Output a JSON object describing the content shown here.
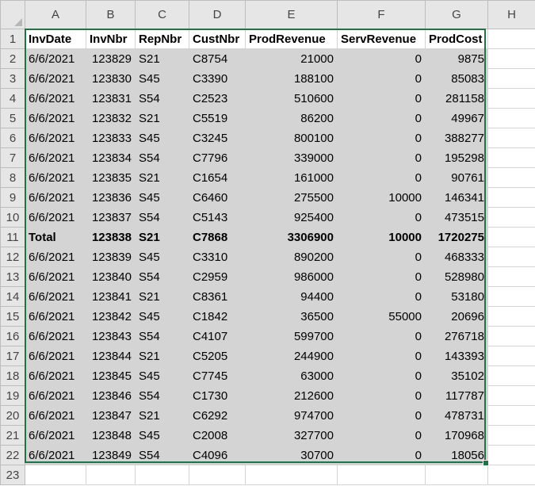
{
  "columns": [
    "A",
    "B",
    "C",
    "D",
    "E",
    "F",
    "G",
    "H"
  ],
  "rows": [
    [
      "InvDate",
      "InvNbr",
      "RepNbr",
      "CustNbr",
      "ProdRevenue",
      "ServRevenue",
      "ProdCost"
    ],
    [
      "6/6/2021",
      "123829",
      "S21",
      "C8754",
      "21000",
      "0",
      "9875"
    ],
    [
      "6/6/2021",
      "123830",
      "S45",
      "C3390",
      "188100",
      "0",
      "85083"
    ],
    [
      "6/6/2021",
      "123831",
      "S54",
      "C2523",
      "510600",
      "0",
      "281158"
    ],
    [
      "6/6/2021",
      "123832",
      "S21",
      "C5519",
      "86200",
      "0",
      "49967"
    ],
    [
      "6/6/2021",
      "123833",
      "S45",
      "C3245",
      "800100",
      "0",
      "388277"
    ],
    [
      "6/6/2021",
      "123834",
      "S54",
      "C7796",
      "339000",
      "0",
      "195298"
    ],
    [
      "6/6/2021",
      "123835",
      "S21",
      "C1654",
      "161000",
      "0",
      "90761"
    ],
    [
      "6/6/2021",
      "123836",
      "S45",
      "C6460",
      "275500",
      "10000",
      "146341"
    ],
    [
      "6/6/2021",
      "123837",
      "S54",
      "C5143",
      "925400",
      "0",
      "473515"
    ],
    [
      "Total",
      "123838",
      "S21",
      "C7868",
      "3306900",
      "10000",
      "1720275"
    ],
    [
      "6/6/2021",
      "123839",
      "S45",
      "C3310",
      "890200",
      "0",
      "468333"
    ],
    [
      "6/6/2021",
      "123840",
      "S54",
      "C2959",
      "986000",
      "0",
      "528980"
    ],
    [
      "6/6/2021",
      "123841",
      "S21",
      "C8361",
      "94400",
      "0",
      "53180"
    ],
    [
      "6/6/2021",
      "123842",
      "S45",
      "C1842",
      "36500",
      "55000",
      "20696"
    ],
    [
      "6/6/2021",
      "123843",
      "S54",
      "C4107",
      "599700",
      "0",
      "276718"
    ],
    [
      "6/6/2021",
      "123844",
      "S21",
      "C5205",
      "244900",
      "0",
      "143393"
    ],
    [
      "6/6/2021",
      "123845",
      "S45",
      "C7745",
      "63000",
      "0",
      "35102"
    ],
    [
      "6/6/2021",
      "123846",
      "S54",
      "C1730",
      "212600",
      "0",
      "117787"
    ],
    [
      "6/6/2021",
      "123847",
      "S21",
      "C6292",
      "974700",
      "0",
      "478731"
    ],
    [
      "6/6/2021",
      "123848",
      "S45",
      "C2008",
      "327700",
      "0",
      "170968"
    ],
    [
      "6/6/2021",
      "123849",
      "S54",
      "C4096",
      "30700",
      "0",
      "18056"
    ]
  ],
  "row_numbers": [
    "1",
    "2",
    "3",
    "4",
    "5",
    "6",
    "7",
    "8",
    "9",
    "10",
    "11",
    "12",
    "13",
    "14",
    "15",
    "16",
    "17",
    "18",
    "19",
    "20",
    "21",
    "22",
    "23"
  ],
  "numeric_columns": [
    1,
    4,
    5,
    6
  ],
  "header_row_index": 0,
  "total_row_index": 10,
  "colors": {
    "selection_border": "#217346",
    "selection_fill": "#d4d4d4",
    "header_fill": "#e6e6e6",
    "gridline": "#d4d4d4"
  }
}
